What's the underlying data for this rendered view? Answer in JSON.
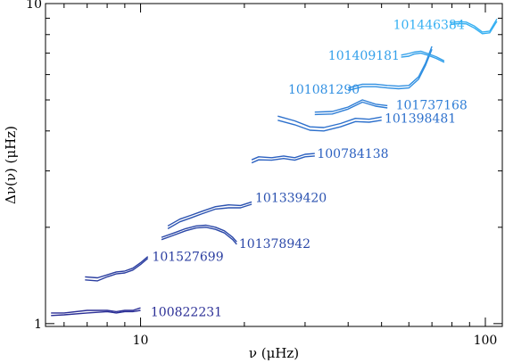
{
  "chart_data": {
    "type": "line",
    "title": "",
    "xlabel": "ν (μHz)",
    "ylabel": "Δν(ν) (μHz)",
    "xscale": "log",
    "yscale": "log",
    "xlim": [
      5.3,
      112
    ],
    "ylim": [
      0.98,
      10.0
    ],
    "grid": false,
    "x_ticks": [
      {
        "value": 10,
        "label": "10"
      },
      {
        "value": 100,
        "label": "100"
      }
    ],
    "y_ticks": [
      {
        "value": 1,
        "label": "1"
      },
      {
        "value": 10,
        "label": "10"
      }
    ],
    "series": [
      {
        "name": "100822231",
        "color": "#2b2f96",
        "label_at": [
          10.7,
          1.09
        ],
        "lines": [
          {
            "x": [
              5.5,
              6.0,
              7.0,
              8.0,
              8.5,
              9.0,
              9.5,
              10.0
            ],
            "y": [
              1.08,
              1.08,
              1.1,
              1.1,
              1.09,
              1.1,
              1.1,
              1.12
            ]
          },
          {
            "x": [
              5.5,
              6.0,
              7.0,
              8.0,
              8.5,
              9.0,
              9.5,
              10.0
            ],
            "y": [
              1.06,
              1.065,
              1.08,
              1.09,
              1.08,
              1.09,
              1.09,
              1.1
            ]
          }
        ]
      },
      {
        "name": "101527699",
        "color": "#2b3ea0",
        "label_at": [
          10.8,
          1.62
        ],
        "lines": [
          {
            "x": [
              6.9,
              7.5,
              8.0,
              8.5,
              9.0,
              9.5,
              10.0,
              10.5
            ],
            "y": [
              1.4,
              1.39,
              1.42,
              1.45,
              1.46,
              1.49,
              1.55,
              1.62
            ]
          },
          {
            "x": [
              6.9,
              7.5,
              8.0,
              8.5,
              9.0,
              9.5,
              10.0,
              10.5
            ],
            "y": [
              1.37,
              1.36,
              1.4,
              1.43,
              1.44,
              1.47,
              1.53,
              1.6
            ]
          }
        ]
      },
      {
        "name": "101378942",
        "color": "#2b48a8",
        "label_at": [
          19.3,
          1.78
        ],
        "lines": [
          {
            "x": [
              11.5,
              12.5,
              13.5,
              14.5,
              15.5,
              16.5,
              17.5,
              18.5,
              19.0
            ],
            "y": [
              1.86,
              1.92,
              1.98,
              2.02,
              2.03,
              2.0,
              1.95,
              1.86,
              1.8
            ]
          },
          {
            "x": [
              11.5,
              12.5,
              13.5,
              14.5,
              15.5,
              16.5,
              17.5,
              18.5,
              19.0
            ],
            "y": [
              1.83,
              1.89,
              1.95,
              1.99,
              2.0,
              1.97,
              1.92,
              1.83,
              1.77
            ]
          }
        ]
      },
      {
        "name": "101339420",
        "color": "#2b52b0",
        "label_at": [
          21.5,
          2.48
        ],
        "lines": [
          {
            "x": [
              12.0,
              13.0,
              14.0,
              15.0,
              16.5,
              18.0,
              19.5,
              21.0
            ],
            "y": [
              2.02,
              2.12,
              2.18,
              2.24,
              2.32,
              2.35,
              2.34,
              2.4
            ]
          },
          {
            "x": [
              12.0,
              13.0,
              14.0,
              15.0,
              16.5,
              18.0,
              19.5,
              21.0
            ],
            "y": [
              1.98,
              2.08,
              2.14,
              2.2,
              2.28,
              2.3,
              2.3,
              2.36
            ]
          }
        ]
      },
      {
        "name": "100784138",
        "color": "#2b60c0",
        "label_at": [
          32.5,
          3.4
        ],
        "lines": [
          {
            "x": [
              21.0,
              22.0,
              24.0,
              26.0,
              28.0,
              30.0,
              32.0
            ],
            "y": [
              3.25,
              3.32,
              3.3,
              3.34,
              3.3,
              3.38,
              3.4
            ]
          },
          {
            "x": [
              21.0,
              22.0,
              24.0,
              26.0,
              28.0,
              30.0,
              32.0
            ],
            "y": [
              3.18,
              3.25,
              3.24,
              3.28,
              3.24,
              3.32,
              3.34
            ]
          }
        ]
      },
      {
        "name": "101398481",
        "color": "#2d70cc",
        "label_at": [
          51.0,
          4.38
        ],
        "lines": [
          {
            "x": [
              25.0,
              28.0,
              31.0,
              34.0,
              38.0,
              42.0,
              46.0,
              50.0
            ],
            "y": [
              4.45,
              4.3,
              4.12,
              4.1,
              4.22,
              4.38,
              4.35,
              4.42
            ]
          },
          {
            "x": [
              25.0,
              28.0,
              31.0,
              34.0,
              38.0,
              42.0,
              46.0,
              50.0
            ],
            "y": [
              4.32,
              4.18,
              4.02,
              4.0,
              4.12,
              4.28,
              4.26,
              4.32
            ]
          }
        ]
      },
      {
        "name": "101737168",
        "color": "#2f7ed6",
        "label_at": [
          55.0,
          4.82
        ],
        "lines": [
          {
            "x": [
              32.0,
              36.0,
              40.0,
              44.0,
              48.0,
              52.0
            ],
            "y": [
              4.58,
              4.6,
              4.75,
              5.0,
              4.85,
              4.8
            ]
          },
          {
            "x": [
              32.0,
              36.0,
              40.0,
              44.0,
              48.0,
              52.0
            ],
            "y": [
              4.5,
              4.52,
              4.68,
              4.92,
              4.78,
              4.72
            ]
          }
        ]
      },
      {
        "name": "101081290",
        "color": "#3190e2",
        "label_at": [
          26.8,
          5.4
        ],
        "lines": [
          {
            "x": [
              40.0,
              44.0,
              48.0,
              52.0,
              56.0,
              60.0,
              64.0,
              67.0,
              70.0
            ],
            "y": [
              5.45,
              5.6,
              5.6,
              5.55,
              5.52,
              5.55,
              5.9,
              6.5,
              7.35
            ]
          },
          {
            "x": [
              40.0,
              44.0,
              48.0,
              52.0,
              56.0,
              60.0,
              64.0,
              67.0,
              70.0
            ],
            "y": [
              5.35,
              5.5,
              5.5,
              5.45,
              5.42,
              5.45,
              5.8,
              6.4,
              7.2
            ]
          }
        ]
      },
      {
        "name": "101409181",
        "color": "#33a0ea",
        "label_at": [
          35.0,
          6.9
        ],
        "lines": [
          {
            "x": [
              57.0,
              60.0,
              62.0,
              65.0,
              68.0,
              72.0,
              76.0
            ],
            "y": [
              6.9,
              6.98,
              7.05,
              7.1,
              6.98,
              6.82,
              6.62
            ]
          },
          {
            "x": [
              57.0,
              60.0,
              62.0,
              65.0,
              68.0,
              72.0,
              76.0
            ],
            "y": [
              6.8,
              6.85,
              6.95,
              7.0,
              6.9,
              6.74,
              6.55
            ]
          }
        ]
      },
      {
        "name": "101446384",
        "color": "#36b0f2",
        "label_at": [
          54.0,
          8.6
        ],
        "lines": [
          {
            "x": [
              79.0,
              84.0,
              88.0,
              93.0,
              98.0,
              103.0,
              108.0
            ],
            "y": [
              8.72,
              8.78,
              8.75,
              8.5,
              8.15,
              8.2,
              8.95
            ]
          },
          {
            "x": [
              79.0,
              84.0,
              88.0,
              93.0,
              98.0,
              103.0,
              108.0
            ],
            "y": [
              8.6,
              8.66,
              8.64,
              8.38,
              8.05,
              8.1,
              8.8
            ]
          }
        ]
      }
    ]
  }
}
